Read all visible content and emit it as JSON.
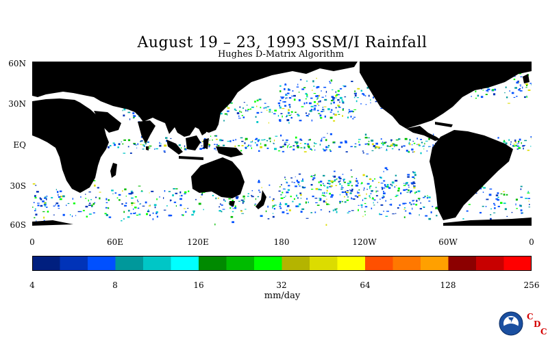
{
  "title": "August 19 – 23, 1993 SSM/I Rainfall",
  "subtitle": "Hughes D-Matrix Algorithm",
  "lat_labels": [
    "60N",
    "30N",
    "EQ",
    "30S",
    "60S"
  ],
  "lon_labels": [
    "0",
    "60E",
    "120E",
    "180",
    "120W",
    "60W",
    "0"
  ],
  "colorbar": {
    "colors": [
      "#001f7f",
      "#0033b8",
      "#0050ff",
      "#00989b",
      "#00c6c6",
      "#00ffff",
      "#008a00",
      "#00bb00",
      "#00ff00",
      "#b4b400",
      "#dcdc00",
      "#ffff00",
      "#ff5000",
      "#ff7800",
      "#ffa000",
      "#8c0000",
      "#c80000",
      "#ff0000"
    ],
    "tick_labels": [
      "4",
      "8",
      "16",
      "32",
      "64",
      "128",
      "256"
    ]
  },
  "unit": "mm/day",
  "logo": {
    "text": "NOAA",
    "letters": [
      "C",
      "D",
      "C"
    ]
  },
  "colors": {
    "land": "#000000",
    "ocean": "#ffffff"
  }
}
